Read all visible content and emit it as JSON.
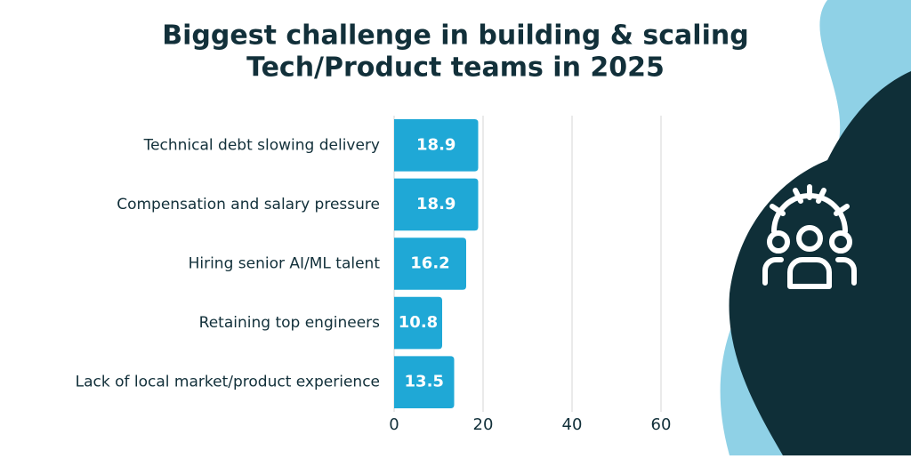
{
  "chart_data": {
    "type": "bar",
    "orientation": "horizontal",
    "title": [
      "Biggest challenge in building & scaling",
      "Tech/Product teams in 2025"
    ],
    "categories": [
      "Technical debt slowing delivery",
      "Compensation and salary pressure",
      "Hiring senior AI/ML talent",
      "Retaining top engineers",
      "Lack of local market/product experience"
    ],
    "values": [
      18.9,
      18.9,
      16.2,
      10.8,
      13.5
    ],
    "color": "#1fa8d6",
    "xlim": [
      0,
      100
    ],
    "xticks": [
      0,
      20,
      40,
      60
    ],
    "grid": true
  }
}
